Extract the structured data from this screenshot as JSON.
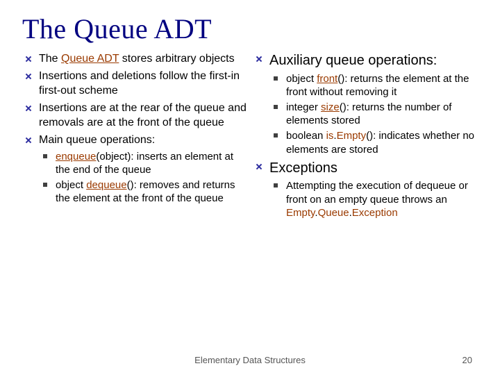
{
  "colors": {
    "title": "#000080",
    "keyword": "#9a3a00",
    "bullet_diamond": "#2e2ea0",
    "bullet_square": "#404040",
    "text": "#000000",
    "background": "#ffffff",
    "footer": "#555555"
  },
  "fonts": {
    "title_family": "Times New Roman",
    "title_size_pt": 40,
    "body_family": "Verdana",
    "body_size_pt": 16,
    "big_body_size_pt": 20,
    "sub_size_pt": 15,
    "footer_size_pt": 13
  },
  "title": "The Queue ADT",
  "left": {
    "b1": {
      "pre": "The ",
      "kw": "Queue ADT",
      "post": " stores arbitrary objects"
    },
    "b2": "Insertions and deletions follow the first-in first-out scheme",
    "b3": "Insertions are at the rear of the queue and removals are at the front of the queue",
    "b4": "Main queue operations:",
    "s1": {
      "kw": "enqueue",
      "post": "(object): inserts an element at the end of the queue"
    },
    "s2": {
      "pre": "object ",
      "kw": "dequeue",
      "post": "(): removes and returns the element at the front of the queue"
    }
  },
  "right": {
    "h1": "Auxiliary queue operations:",
    "s1": {
      "pre": "object ",
      "kw": "front",
      "post": "(): returns the element at the front without removing it"
    },
    "s2": {
      "pre": "integer ",
      "kw": "size",
      "post": "(): returns the number of elements stored"
    },
    "s3": {
      "pre": "boolean ",
      "kw": "is",
      "kw2": "Empty",
      "post": "(): indicates whether no elements are stored"
    },
    "h2": "Exceptions",
    "e1": {
      "pre": "Attempting the execution of dequeue or front on an empty queue throws an ",
      "kw": "Empty",
      "kw2": "Queue",
      "kw3": "Exception"
    }
  },
  "footer": "Elementary Data Structures",
  "page": "20"
}
